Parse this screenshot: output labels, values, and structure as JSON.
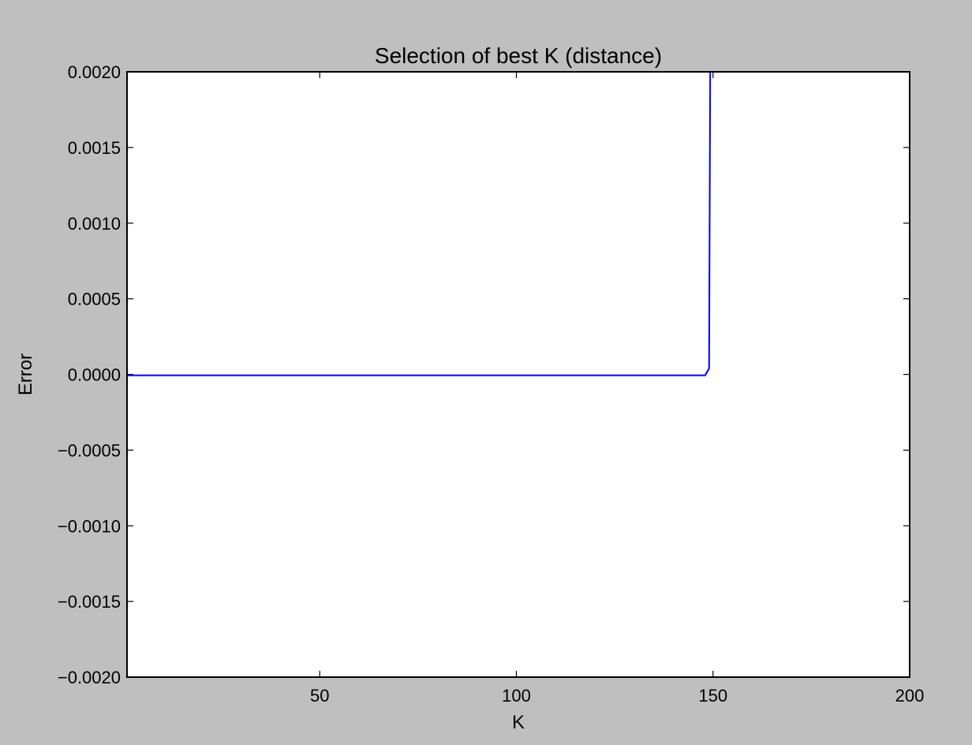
{
  "chart_data": {
    "type": "line",
    "title": "Selection of best K (distance)",
    "xlabel": "K",
    "ylabel": "Error",
    "xlim": [
      1,
      200
    ],
    "ylim": [
      -0.002,
      0.002
    ],
    "xticks": [
      50,
      100,
      150,
      200
    ],
    "xtick_labels": [
      "50",
      "100",
      "150",
      "200"
    ],
    "yticks": [
      0.002,
      0.0015,
      0.001,
      0.0005,
      0.0,
      -0.0005,
      -0.001,
      -0.0015,
      -0.002
    ],
    "ytick_labels": [
      "0.0020",
      "0.0015",
      "0.0010",
      "0.0005",
      "0.0000",
      "−0.0005",
      "−0.0010",
      "−0.0015",
      "−0.0020"
    ],
    "grid": false,
    "series": [
      {
        "color": "#0000ff",
        "x": [
          1,
          10,
          20,
          30,
          40,
          50,
          60,
          70,
          80,
          90,
          100,
          110,
          120,
          130,
          140,
          148,
          149,
          149.3,
          150
        ],
        "values": [
          -6e-06,
          -6e-06,
          -6e-06,
          -6e-06,
          -6e-06,
          -6e-06,
          -6e-06,
          -6e-06,
          -6e-06,
          -6e-06,
          -6e-06,
          -6e-06,
          -6e-06,
          -6e-06,
          -6e-06,
          -6e-06,
          4e-05,
          0.0021,
          0.0045
        ]
      }
    ]
  },
  "colors": {
    "figure_background": "#bfbfbf",
    "axes_background": "#ffffff",
    "line": "#0000ff"
  }
}
